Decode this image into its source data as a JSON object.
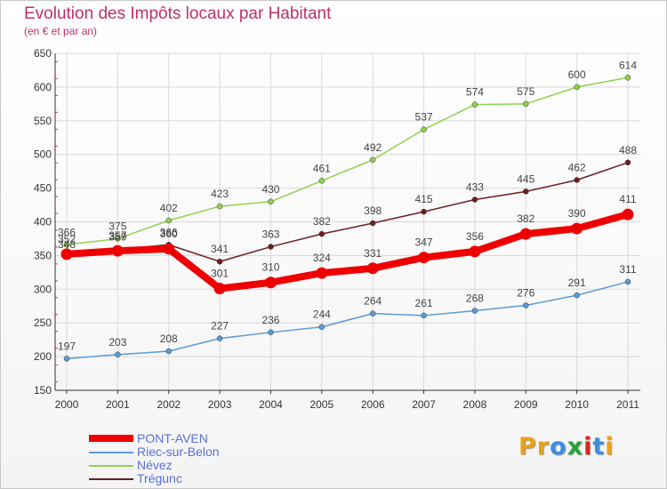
{
  "header": {
    "title": "Evolution des Impôts locaux par Habitant",
    "subtitle": "(en € et par an)"
  },
  "colors": {
    "title": "#c0306a",
    "legend_text": "#5b6fd6",
    "grid": "#d9d9d9",
    "axis": "#333333"
  },
  "logo": {
    "text": "Proxiti",
    "letter_colors": [
      "#e8a21a",
      "#e8a21a",
      "#3a8ee0",
      "#2aa13a",
      "#d9261c",
      "#3a8ee0",
      "#e8a21a"
    ]
  },
  "chart_data": {
    "type": "line",
    "title": "Evolution des Impôts locaux par Habitant",
    "subtitle": "(en € et par an)",
    "xlabel": "",
    "ylabel": "",
    "x": [
      "2000",
      "2001",
      "2002",
      "2003",
      "2004",
      "2005",
      "2006",
      "2007",
      "2008",
      "2009",
      "2010",
      "2011"
    ],
    "ylim": [
      150,
      650
    ],
    "yticks": [
      150,
      200,
      250,
      300,
      350,
      400,
      450,
      500,
      550,
      600,
      650
    ],
    "grid": true,
    "legend_position": "bottom-left",
    "series": [
      {
        "name": "PONT-AVEN",
        "color": "#ee0000",
        "values": [
          352,
          357,
          360,
          301,
          310,
          324,
          331,
          347,
          356,
          382,
          390,
          411
        ],
        "thick": true
      },
      {
        "name": "Riec-sur-Belon",
        "color": "#5b9bd5",
        "values": [
          197,
          203,
          208,
          227,
          236,
          244,
          264,
          261,
          268,
          276,
          291,
          311
        ],
        "thick": false
      },
      {
        "name": "Névez",
        "color": "#8fd14f",
        "values": [
          366,
          375,
          402,
          423,
          430,
          461,
          492,
          537,
          574,
          575,
          600,
          614
        ],
        "thick": false
      },
      {
        "name": "Trégunc",
        "color": "#6b1f1f",
        "values": [
          348,
          359,
          366,
          341,
          363,
          382,
          398,
          415,
          433,
          445,
          462,
          488
        ],
        "thick": false
      }
    ]
  }
}
